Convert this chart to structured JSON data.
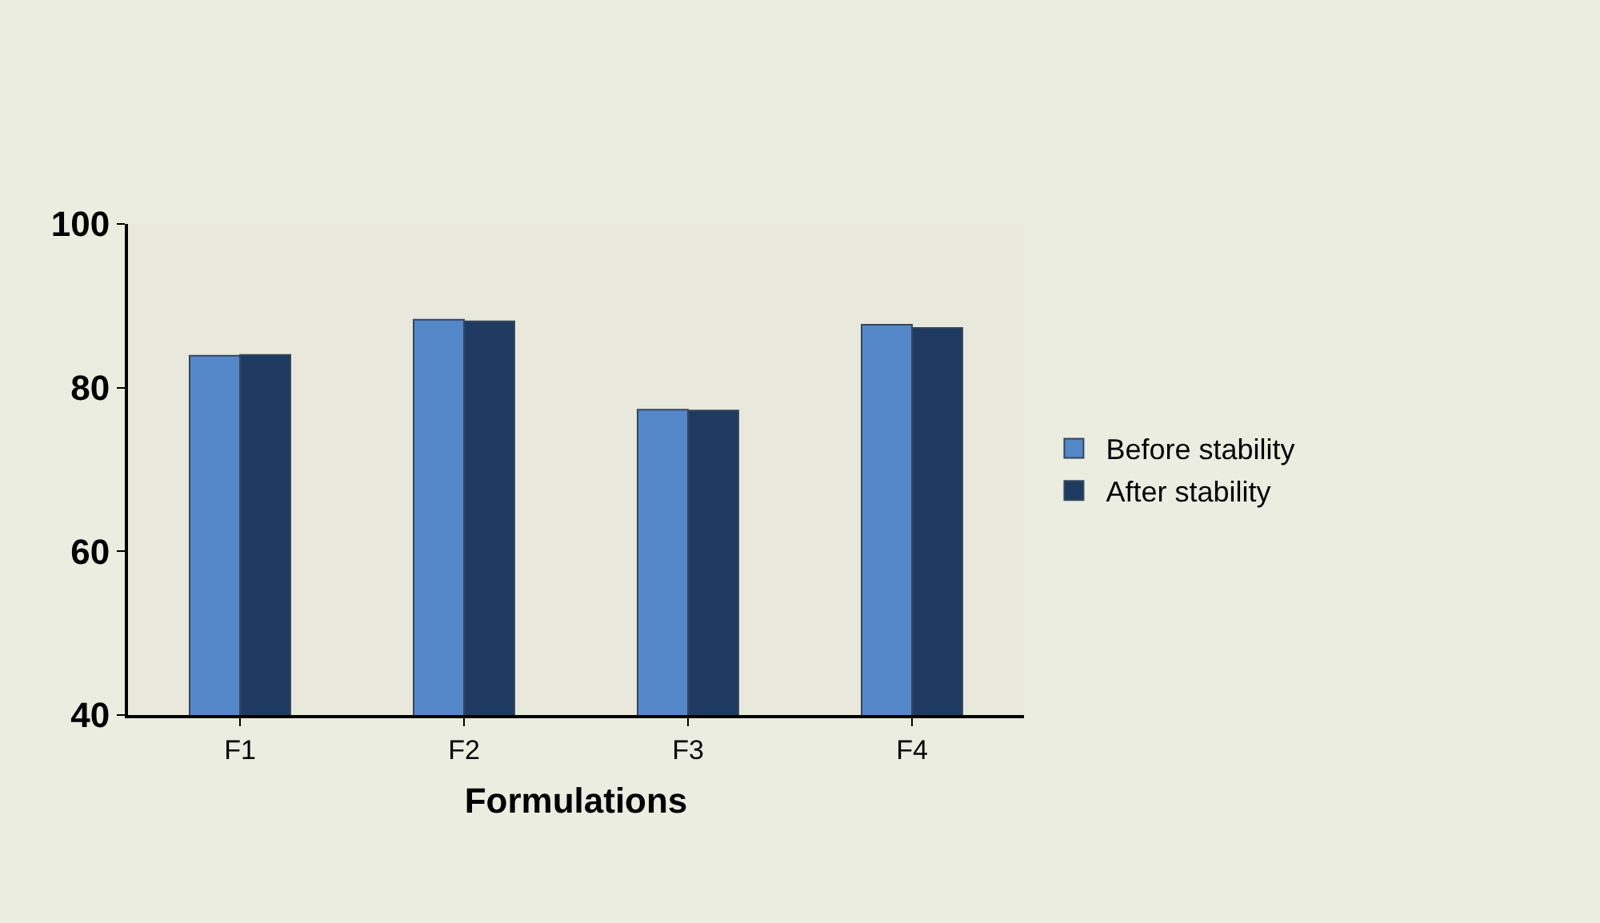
{
  "chart_data": {
    "type": "bar",
    "xlabel": "Formulations",
    "categories": [
      "F1",
      "F2",
      "F3",
      "F4"
    ],
    "series": [
      {
        "name": "Before stability",
        "color": "#5588c8",
        "values": [
          83.9,
          88.3,
          77.3,
          87.7
        ]
      },
      {
        "name": "After stability",
        "color": "#1f3a60",
        "values": [
          84.0,
          88.1,
          77.2,
          87.3
        ]
      }
    ],
    "ylim": [
      40,
      100
    ],
    "yticks": [
      40,
      60,
      80,
      100
    ],
    "grid": false,
    "legend": "right"
  }
}
